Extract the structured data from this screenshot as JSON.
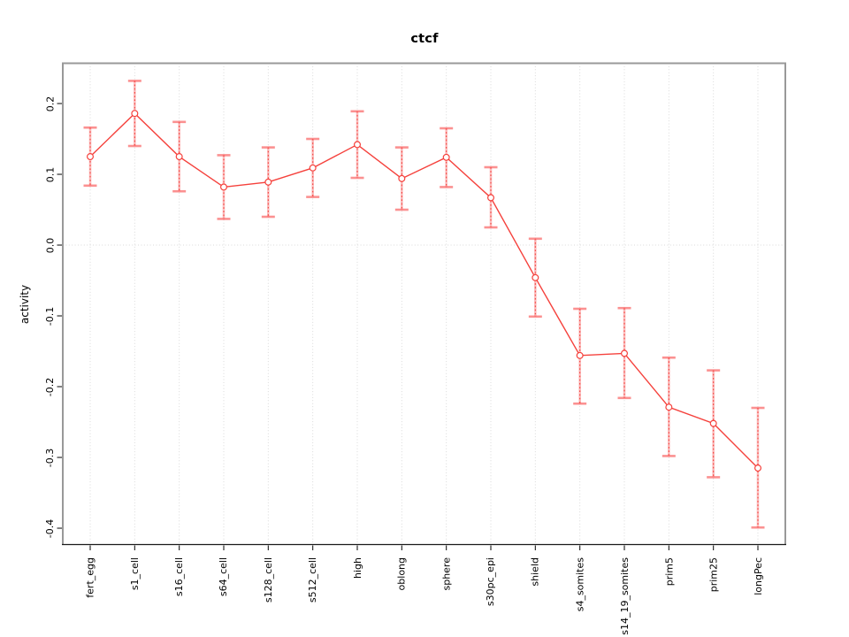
{
  "title": "ctcf",
  "y_axis": {
    "label": "activity",
    "tick_labels": [
      "0.2",
      "0.1",
      "0.0",
      "-0.1",
      "-0.2",
      "-0.3",
      "-0.4"
    ],
    "tick_values": [
      0.2,
      0.1,
      0.0,
      -0.1,
      -0.2,
      -0.3,
      -0.4
    ]
  },
  "chart_data": {
    "type": "line",
    "title": "ctcf",
    "xlabel": "",
    "ylabel": "activity",
    "categories": [
      "fert_egg",
      "s1_cell",
      "s16_cell",
      "s64_cell",
      "s128_cell",
      "s512_cell",
      "high",
      "oblong",
      "sphere",
      "s30pc_epi",
      "shield",
      "s4_somites",
      "s14_19_somites",
      "prim5",
      "prim25",
      "longPec"
    ],
    "series": [
      {
        "name": "ctcf",
        "values": [
          0.125,
          0.186,
          0.125,
          0.082,
          0.089,
          0.109,
          0.142,
          0.094,
          0.124,
          0.067,
          -0.046,
          -0.156,
          -0.153,
          -0.229,
          -0.252,
          -0.315
        ],
        "error_high": [
          0.166,
          0.232,
          0.174,
          0.127,
          0.138,
          0.15,
          0.189,
          0.138,
          0.165,
          0.11,
          0.009,
          -0.09,
          -0.089,
          -0.159,
          -0.177,
          -0.23
        ],
        "error_low": [
          0.084,
          0.14,
          0.076,
          0.037,
          0.04,
          0.068,
          0.095,
          0.05,
          0.082,
          0.025,
          -0.101,
          -0.224,
          -0.216,
          -0.298,
          -0.328,
          -0.399
        ]
      }
    ],
    "ylim": [
      -0.4231,
      0.2569
    ],
    "grid": {
      "vertical_per_category": true,
      "horizontal_zero_line": true,
      "style": "dotted"
    },
    "legend_position": "none",
    "marker": "open-circle",
    "colors": {
      "line": "#f5413c",
      "error_bar_light": "#fa9c9c",
      "grid": "#d9d9d9",
      "box_border": "#999999",
      "axis": "#1a1a1a",
      "text": "#000000",
      "background": "#ffffff"
    }
  }
}
